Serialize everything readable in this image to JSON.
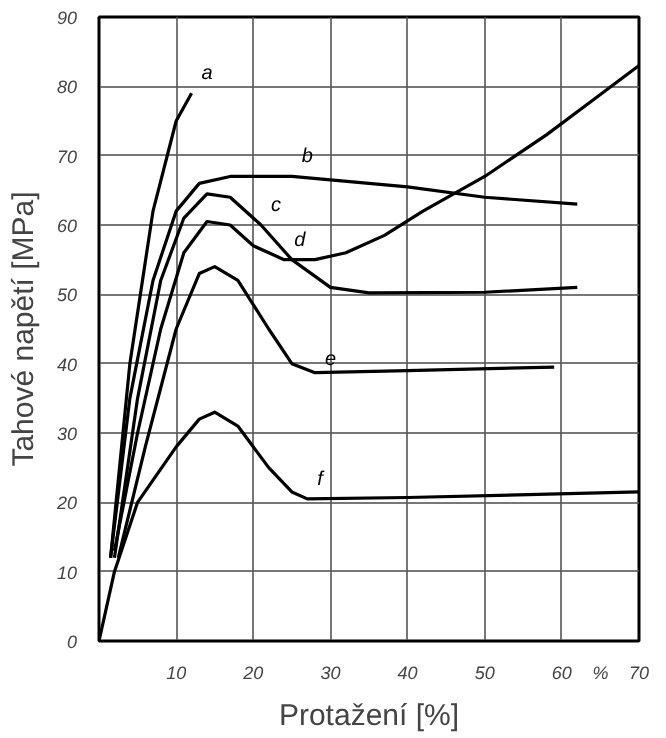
{
  "chart_data": {
    "type": "line",
    "xlabel": "Protažení [%]",
    "ylabel": "Tahové napětí [MPa]",
    "xlim": [
      0,
      70
    ],
    "ylim": [
      0,
      90
    ],
    "xticks": [
      10,
      20,
      30,
      40,
      50,
      60,
      {
        "value": 65,
        "label": "%"
      },
      70
    ],
    "yticks": [
      0,
      10,
      20,
      30,
      40,
      50,
      60,
      70,
      80,
      90
    ],
    "grid": true,
    "marker": "none",
    "line_style": "solid",
    "series": [
      {
        "color": "#000000",
        "x": [
          1.5,
          4,
          7,
          10,
          12
        ],
        "values": [
          12,
          40,
          62,
          75,
          79
        ]
      },
      {
        "color": "#000000",
        "x": [
          1.5,
          4,
          7,
          10,
          13,
          17,
          25,
          40,
          50,
          62
        ],
        "values": [
          12,
          35,
          52,
          62,
          66,
          67,
          67,
          65.5,
          64,
          63
        ]
      },
      {
        "color": "#000000",
        "x": [
          2,
          5,
          8,
          11,
          14,
          17,
          21,
          25,
          30,
          35,
          50,
          62
        ],
        "values": [
          12,
          35,
          52,
          61,
          64.5,
          64,
          60,
          55,
          51,
          50.2,
          50.3,
          51
        ]
      },
      {
        "color": "#000000",
        "x": [
          2,
          5,
          8,
          11,
          14,
          17,
          20,
          24,
          28,
          32,
          37,
          42,
          50,
          58,
          64,
          70
        ],
        "values": [
          13,
          30,
          45,
          56,
          60.5,
          60,
          57,
          55,
          55,
          56,
          58.5,
          62,
          67,
          73,
          78,
          83
        ]
      },
      {
        "color": "#000000",
        "x": [
          2.5,
          6,
          10,
          13,
          15,
          18,
          22,
          25,
          28,
          40,
          59
        ],
        "values": [
          12,
          28,
          45,
          53,
          54,
          52,
          45,
          40,
          38.7,
          39,
          39.5
        ]
      },
      {
        "color": "#000000",
        "x": [
          0,
          2,
          5,
          10,
          13,
          15,
          18,
          22,
          25,
          27,
          40,
          70
        ],
        "values": [
          0,
          10,
          20,
          28,
          32,
          33,
          31,
          25,
          21.5,
          20.5,
          20.7,
          21.5
        ]
      }
    ],
    "annotations": [
      {
        "text": "a",
        "x": 12,
        "y": 79
      },
      {
        "text": "b",
        "x": 25,
        "y": 67
      },
      {
        "text": "c",
        "x": 21,
        "y": 60
      },
      {
        "text": "d",
        "x": 24,
        "y": 55
      },
      {
        "text": "e",
        "x": 28,
        "y": 38.7
      },
      {
        "text": "f",
        "x": 27,
        "y": 20.5
      }
    ]
  }
}
